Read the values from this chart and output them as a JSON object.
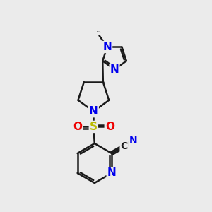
{
  "bg_color": "#ebebeb",
  "bond_color": "#1a1a1a",
  "bond_width": 1.8,
  "atom_colors": {
    "N": "#0000ee",
    "O": "#ee0000",
    "S": "#bbbb00",
    "C": "#1a1a1a"
  },
  "figsize": [
    3.0,
    3.0
  ],
  "dpi": 100
}
